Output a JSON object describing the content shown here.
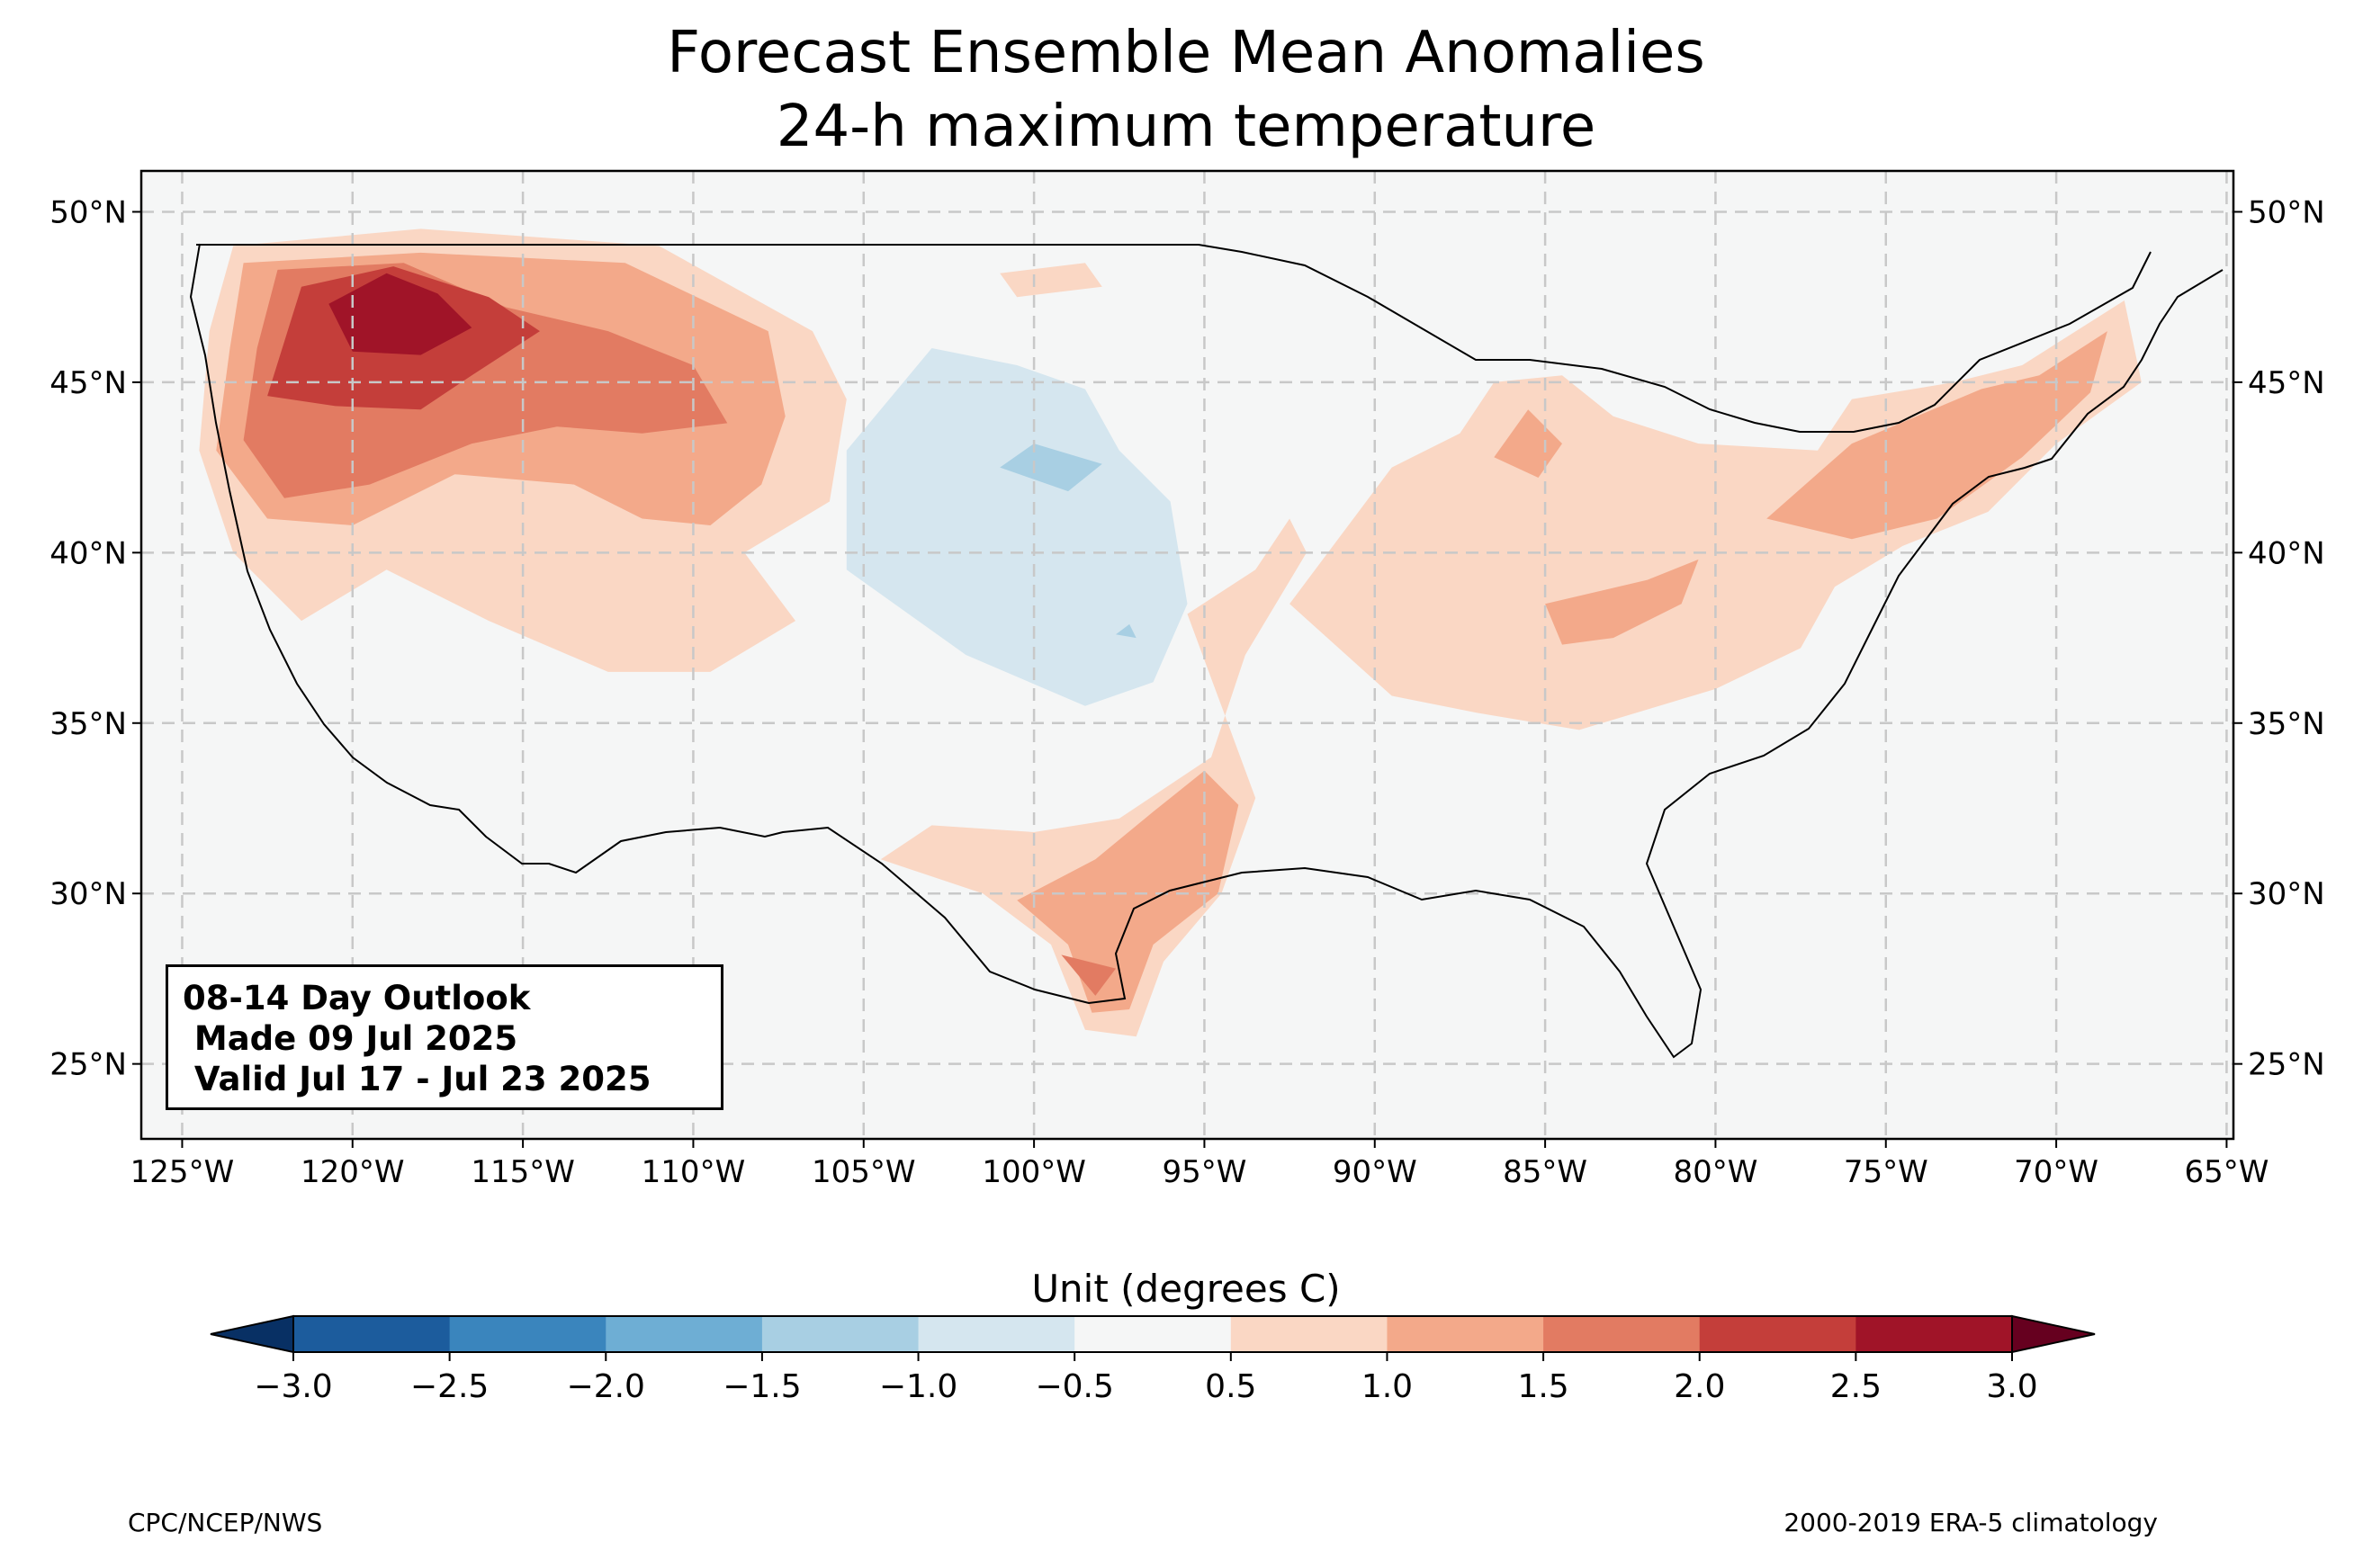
{
  "title": {
    "line1": "Forecast Ensemble Mean Anomalies",
    "line2": "24-h maximum temperature"
  },
  "map": {
    "lon_range": [
      -126.2,
      -64.8
    ],
    "lat_range": [
      22.8,
      51.2
    ],
    "lat_ticks": [
      {
        "value": 50,
        "label": "50°N"
      },
      {
        "value": 45,
        "label": "45°N"
      },
      {
        "value": 40,
        "label": "40°N"
      },
      {
        "value": 35,
        "label": "35°N"
      },
      {
        "value": 30,
        "label": "30°N"
      },
      {
        "value": 25,
        "label": "25°N"
      }
    ],
    "lon_ticks": [
      {
        "value": -125,
        "label": "125°W"
      },
      {
        "value": -120,
        "label": "120°W"
      },
      {
        "value": -115,
        "label": "115°W"
      },
      {
        "value": -110,
        "label": "110°W"
      },
      {
        "value": -105,
        "label": "105°W"
      },
      {
        "value": -100,
        "label": "100°W"
      },
      {
        "value": -95,
        "label": "95°W"
      },
      {
        "value": -90,
        "label": "90°W"
      },
      {
        "value": -85,
        "label": "85°W"
      },
      {
        "value": -80,
        "label": "80°W"
      },
      {
        "value": -75,
        "label": "75°W"
      },
      {
        "value": -70,
        "label": "70°W"
      },
      {
        "value": -65,
        "label": "65°W"
      }
    ],
    "grid": "dashed",
    "info_box": {
      "line1": "08-14 Day Outlook",
      "line2": " Made 09 Jul 2025",
      "line3": " Valid Jul 17 - Jul 23 2025"
    },
    "anomaly_areas": [
      {
        "name": "northwest",
        "level": 1,
        "points": [
          [
            -123.5,
            49
          ],
          [
            -118,
            49.5
          ],
          [
            -111,
            49
          ],
          [
            -106.5,
            46.5
          ],
          [
            -105.5,
            44.5
          ],
          [
            -106,
            41.5
          ],
          [
            -108.5,
            40
          ],
          [
            -107,
            38
          ],
          [
            -109.5,
            36.5
          ],
          [
            -112.5,
            36.5
          ],
          [
            -116,
            38
          ],
          [
            -119,
            39.5
          ],
          [
            -121.5,
            38
          ],
          [
            -123.5,
            40
          ],
          [
            -124.5,
            43
          ],
          [
            -124.2,
            46.5
          ]
        ]
      },
      {
        "name": "northwest",
        "level": 2,
        "points": [
          [
            -123.2,
            48.5
          ],
          [
            -118,
            48.8
          ],
          [
            -112,
            48.5
          ],
          [
            -107.8,
            46.5
          ],
          [
            -107.3,
            44
          ],
          [
            -108,
            42
          ],
          [
            -109.5,
            40.8
          ],
          [
            -111.5,
            41
          ],
          [
            -113.5,
            42
          ],
          [
            -117,
            42.3
          ],
          [
            -120,
            40.8
          ],
          [
            -122.5,
            41
          ],
          [
            -124,
            43
          ],
          [
            -123.6,
            46
          ]
        ]
      },
      {
        "name": "northwest",
        "level": 3,
        "points": [
          [
            -122.2,
            48.3
          ],
          [
            -118.5,
            48.5
          ],
          [
            -115.5,
            47.2
          ],
          [
            -112.5,
            46.5
          ],
          [
            -110,
            45.5
          ],
          [
            -109,
            43.8
          ],
          [
            -111.5,
            43.5
          ],
          [
            -114,
            43.7
          ],
          [
            -116.5,
            43.2
          ],
          [
            -119.5,
            42
          ],
          [
            -122,
            41.6
          ],
          [
            -123.2,
            43.3
          ],
          [
            -122.8,
            46
          ]
        ]
      },
      {
        "name": "northwest",
        "level": 4,
        "points": [
          [
            -121.5,
            47.8
          ],
          [
            -118.8,
            48.4
          ],
          [
            -116,
            47.5
          ],
          [
            -114.5,
            46.5
          ],
          [
            -116.5,
            45.2
          ],
          [
            -118,
            44.2
          ],
          [
            -120.5,
            44.3
          ],
          [
            -122.5,
            44.6
          ]
        ]
      },
      {
        "name": "northwest",
        "level": 5,
        "points": [
          [
            -120.7,
            47.3
          ],
          [
            -119,
            48.2
          ],
          [
            -117.5,
            47.6
          ],
          [
            -116.5,
            46.6
          ],
          [
            -118,
            45.8
          ],
          [
            -120,
            45.9
          ]
        ]
      },
      {
        "name": "northern-plains",
        "level": 1,
        "points": [
          [
            -101,
            48.2
          ],
          [
            -98.5,
            48.5
          ],
          [
            -98,
            47.8
          ],
          [
            -100.5,
            47.5
          ]
        ]
      },
      {
        "name": "texas",
        "level": 1,
        "points": [
          [
            -104.5,
            31
          ],
          [
            -101.5,
            30
          ],
          [
            -99.5,
            28.5
          ],
          [
            -98.5,
            26
          ],
          [
            -97,
            25.8
          ],
          [
            -96.2,
            28
          ],
          [
            -94.5,
            30
          ],
          [
            -93.5,
            32.8
          ],
          [
            -94.5,
            35.5
          ],
          [
            -95.5,
            38.2
          ],
          [
            -93.5,
            39.5
          ],
          [
            -92.5,
            41
          ],
          [
            -92,
            40
          ],
          [
            -93.8,
            37
          ],
          [
            -94.8,
            34
          ],
          [
            -97.5,
            32.2
          ],
          [
            -100,
            31.8
          ],
          [
            -103,
            32
          ]
        ]
      },
      {
        "name": "texas",
        "level": 2,
        "points": [
          [
            -100.5,
            29.8
          ],
          [
            -99,
            28.5
          ],
          [
            -98.3,
            26.5
          ],
          [
            -97.2,
            26.6
          ],
          [
            -96.5,
            28.5
          ],
          [
            -94.6,
            30
          ],
          [
            -94,
            32.6
          ],
          [
            -95,
            33.6
          ],
          [
            -96.5,
            32.4
          ],
          [
            -98.2,
            31
          ]
        ]
      },
      {
        "name": "texas",
        "level": 3,
        "points": [
          [
            -99.2,
            28.2
          ],
          [
            -98.2,
            27
          ],
          [
            -97.6,
            27.8
          ]
        ]
      },
      {
        "name": "east",
        "level": 1,
        "points": [
          [
            -92.5,
            38.5
          ],
          [
            -89.5,
            42.5
          ],
          [
            -87.5,
            43.5
          ],
          [
            -86.5,
            45
          ],
          [
            -84.5,
            45.2
          ],
          [
            -83,
            44
          ],
          [
            -80.5,
            43.2
          ],
          [
            -77,
            43
          ],
          [
            -76,
            44.5
          ],
          [
            -73,
            45
          ],
          [
            -71,
            45.5
          ],
          [
            -68,
            47.4
          ],
          [
            -67.5,
            45
          ],
          [
            -70,
            43.2
          ],
          [
            -72,
            41.2
          ],
          [
            -74.5,
            40.2
          ],
          [
            -76.5,
            39
          ],
          [
            -77.5,
            37.2
          ],
          [
            -80,
            36
          ],
          [
            -84,
            34.8
          ],
          [
            -87,
            35.3
          ],
          [
            -89.5,
            35.8
          ]
        ]
      },
      {
        "name": "east",
        "level": 2,
        "points": [
          [
            -78.5,
            41
          ],
          [
            -76,
            43.2
          ],
          [
            -72.2,
            44.8
          ],
          [
            -70.5,
            45.2
          ],
          [
            -68.5,
            46.5
          ],
          [
            -69,
            44.7
          ],
          [
            -71,
            42.8
          ],
          [
            -73.5,
            41
          ],
          [
            -76,
            40.4
          ]
        ]
      },
      {
        "name": "ohio-valley",
        "level": 2,
        "points": [
          [
            -85,
            38.5
          ],
          [
            -82,
            39.2
          ],
          [
            -80.5,
            39.8
          ],
          [
            -81,
            38.5
          ],
          [
            -83,
            37.5
          ],
          [
            -84.5,
            37.3
          ]
        ]
      },
      {
        "name": "great-lakes",
        "level": 2,
        "points": [
          [
            -86.5,
            42.8
          ],
          [
            -85.5,
            44.2
          ],
          [
            -84.5,
            43.2
          ],
          [
            -85.2,
            42.2
          ]
        ]
      },
      {
        "name": "central-plains",
        "level": -1,
        "points": [
          [
            -103,
            46
          ],
          [
            -100.5,
            45.5
          ],
          [
            -98.5,
            44.8
          ],
          [
            -97.5,
            43
          ],
          [
            -96,
            41.5
          ],
          [
            -95.5,
            38.5
          ],
          [
            -96.5,
            36.2
          ],
          [
            -98.5,
            35.5
          ],
          [
            -102,
            37
          ],
          [
            -105.5,
            39.5
          ],
          [
            -105.5,
            43
          ]
        ]
      },
      {
        "name": "central-plains",
        "level": -2,
        "points": [
          [
            -101,
            42.5
          ],
          [
            -99,
            41.8
          ],
          [
            -98,
            42.6
          ],
          [
            -100,
            43.2
          ]
        ]
      },
      {
        "name": "kansas",
        "level": -2,
        "points": [
          [
            -97.6,
            37.6
          ],
          [
            -97,
            37.5
          ],
          [
            -97.2,
            37.9
          ]
        ]
      }
    ]
  },
  "colorbar": {
    "title": "Unit (degrees C)",
    "ticks": [
      "−3.0",
      "−2.5",
      "−2.0",
      "−1.5",
      "−1.0",
      "−0.5",
      "0.5",
      "1.0",
      "1.5",
      "2.0",
      "2.5",
      "3.0"
    ],
    "levels": [
      -3.0,
      -2.5,
      -2.0,
      -1.5,
      -1.0,
      -0.5,
      0.5,
      1.0,
      1.5,
      2.0,
      2.5,
      3.0
    ],
    "colors": [
      "#1c5c9d",
      "#3a85bd",
      "#6eaed4",
      "#a8cfe3",
      "#d5e6ef",
      "#f5f6f6",
      "#fad7c4",
      "#f3a98a",
      "#e27b62",
      "#c43e3a",
      "#a01428"
    ],
    "under_color": "#083064",
    "over_color": "#66001f"
  },
  "footer": {
    "left": "CPC/NCEP/NWS",
    "right": "2000-2019 ERA-5 climatology"
  },
  "colors": {
    "land": "#f5f6f6",
    "gridline": "#c8c8c8",
    "state_border": "#000000",
    "county_border": "#8c8c8c"
  }
}
